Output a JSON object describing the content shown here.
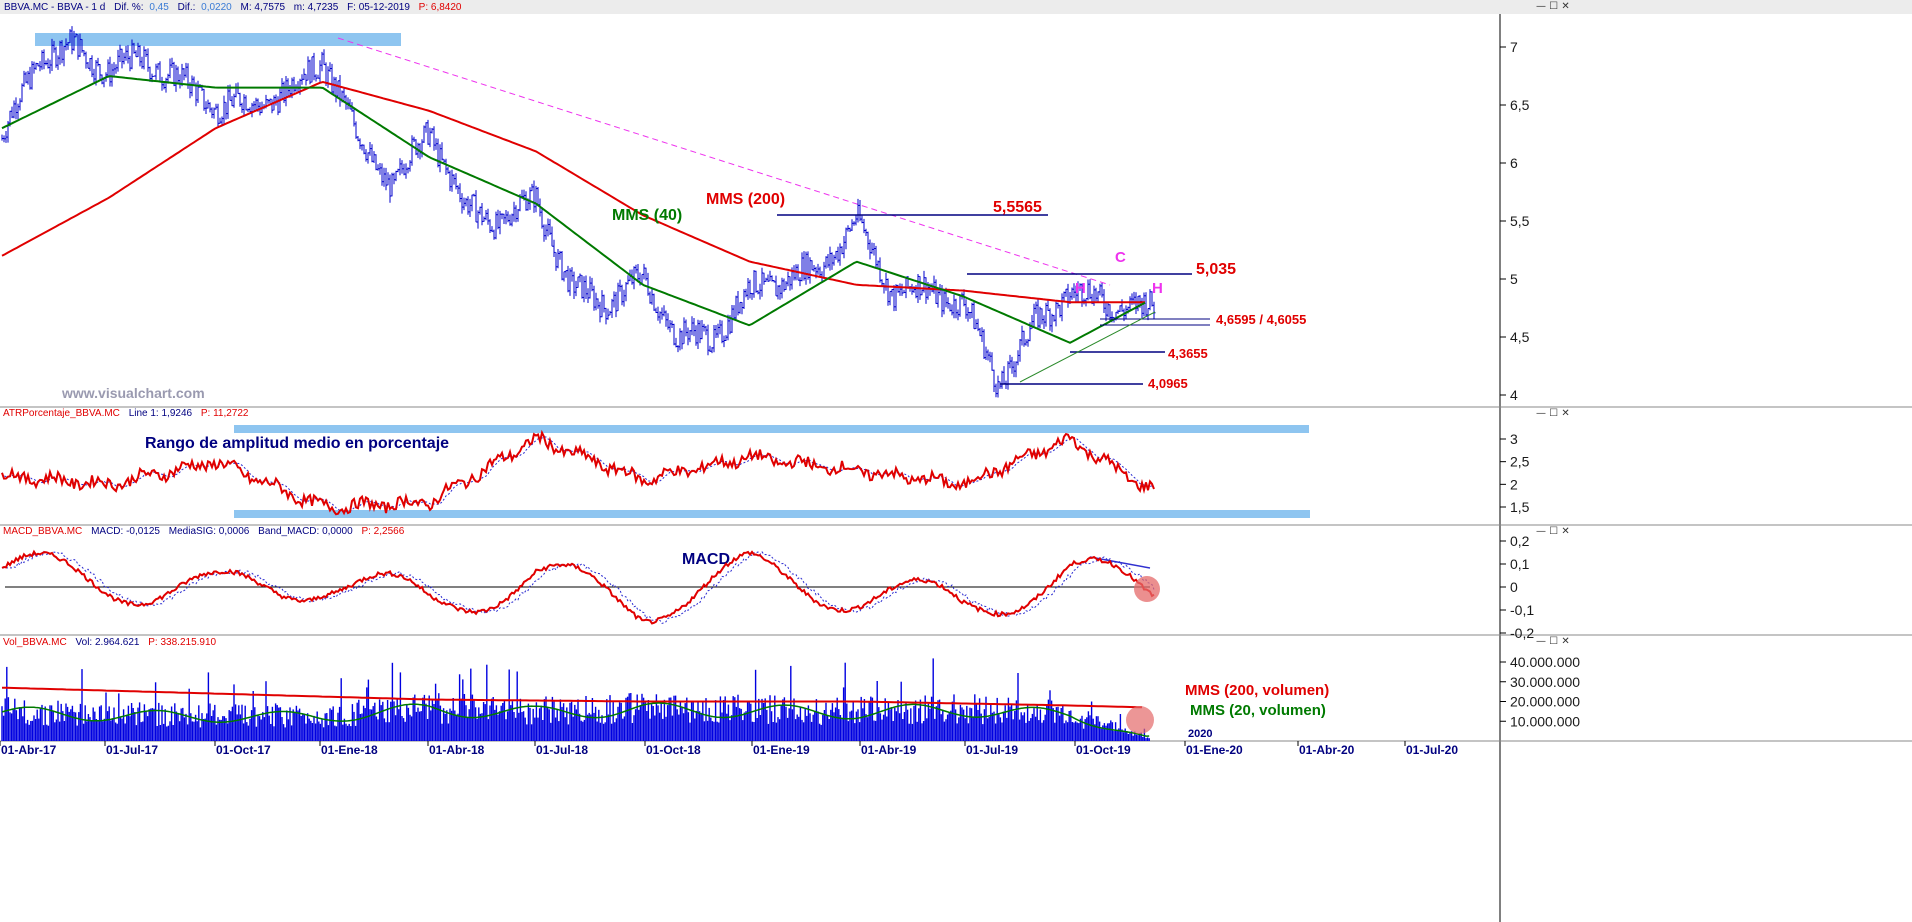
{
  "colors": {
    "price": "#0000cc",
    "mms200": "#e00000",
    "mms40": "#007a00",
    "band": "#8ec5f0",
    "trend": "#ee33ee",
    "annot_red": "#e00000",
    "annot_blue": "#000080",
    "annot_magenta": "#ee33ee",
    "macd_hist_dot": "#e46a6a"
  },
  "panels": {
    "price": {
      "header": {
        "symbol": "BBVA.MC - BBVA - 1 d",
        "dif_pct_label": "Dif. %:",
        "dif_pct": "0,45",
        "dif_label": "Dif.:",
        "dif": "0,0220",
        "max": "M: 4,7575",
        "min": "m: 4,7235",
        "date": "F: 05-12-2019",
        "prev": "P: 6,8420"
      },
      "yticks": [
        "7",
        "6,5",
        "6",
        "5,5",
        "5",
        "4,5",
        "4"
      ],
      "watermark": "www.visualchart.com",
      "labels": {
        "mms40": "MMS (40)",
        "mms200": "MMS (200)",
        "l5565": "5,5565",
        "l5035": "5,035",
        "l46595": "4,6595 / 4,6055",
        "l43655": "4,3655",
        "l40965": "4,0965",
        "h1": "H",
        "c": "C",
        "h2": "H"
      }
    },
    "atr": {
      "header": {
        "name": "ATRPorcentaje_BBVA.MC",
        "line1": "Line 1: 1,9246",
        "p": "P: 11,2722"
      },
      "title": "Rango de amplitud medio en porcentaje",
      "yticks": [
        "3",
        "2,5",
        "2",
        "1,5"
      ]
    },
    "macd": {
      "header": {
        "name": "MACD_BBVA.MC",
        "macd": "MACD: -0,0125",
        "sig": "MediaSIG: 0,0006",
        "band": "Band_MACD: 0,0000",
        "p": "P: 2,2566"
      },
      "title": "MACD",
      "yticks": [
        "0,2",
        "0,1",
        "0",
        "-0,1",
        "-0,2"
      ]
    },
    "volume": {
      "header": {
        "name": "Vol_BBVA.MC",
        "vol": "Vol: 2.964.621",
        "p": "P: 338.215.910"
      },
      "yticks": [
        "40.000.000",
        "30.000.000",
        "20.000.000",
        "10.000.000"
      ],
      "legend200": "MMS (200, volumen)",
      "legend20": "MMS (20, volumen)",
      "year_label": "2020"
    }
  },
  "xaxis": {
    "labels": [
      "01-Abr-17",
      "01-Jul-17",
      "01-Oct-17",
      "01-Ene-18",
      "01-Abr-18",
      "01-Jul-18",
      "01-Oct-18",
      "01-Ene-19",
      "01-Abr-19",
      "01-Jul-19",
      "01-Oct-19",
      "01-Ene-20",
      "01-Abr-20",
      "01-Jul-20"
    ]
  },
  "chart_data": [
    {
      "type": "line",
      "title": "",
      "series": [
        {
          "name": "BBVA.MC",
          "x": [
            "01-Abr-17",
            "01-May-17",
            "01-Jun-17",
            "01-Jul-17",
            "01-Ago-17",
            "01-Sep-17",
            "01-Oct-17",
            "01-Nov-17",
            "01-Dic-17",
            "01-Ene-18",
            "15-Ene-18",
            "01-Feb-18",
            "01-Mar-18",
            "01-Abr-18",
            "01-May-18",
            "01-Jun-18",
            "01-Jul-18",
            "01-Ago-18",
            "01-Sep-18",
            "01-Oct-18",
            "01-Nov-18",
            "01-Dic-18",
            "01-Ene-19",
            "01-Feb-19",
            "01-Mar-19",
            "01-Abr-19",
            "01-May-19",
            "01-Jun-19",
            "01-Jul-19",
            "01-Ago-19",
            "01-Sep-19",
            "01-Oct-19",
            "01-Nov-19",
            "05-Dic-19"
          ],
          "values": [
            6.2,
            6.9,
            7.0,
            6.8,
            6.9,
            6.7,
            6.5,
            6.5,
            6.6,
            6.9,
            6.6,
            6.2,
            5.8,
            6.3,
            5.6,
            5.5,
            5.7,
            4.9,
            4.8,
            5.0,
            4.5,
            4.5,
            4.9,
            5.0,
            5.1,
            5.5,
            4.9,
            4.9,
            4.8,
            4.1,
            4.6,
            4.9,
            4.8,
            4.74
          ]
        },
        {
          "name": "MMS (40)",
          "x": [
            "01-Abr-17",
            "01-Jul-17",
            "01-Oct-17",
            "01-Ene-18",
            "01-Abr-18",
            "01-Jul-18",
            "01-Oct-18",
            "01-Ene-19",
            "01-Abr-19",
            "01-Jul-19",
            "01-Oct-19",
            "05-Dic-19"
          ],
          "values": [
            6.3,
            6.75,
            6.65,
            6.65,
            6.05,
            5.65,
            4.95,
            4.6,
            5.15,
            4.85,
            4.45,
            4.8
          ]
        },
        {
          "name": "MMS (200)",
          "x": [
            "01-Abr-17",
            "01-Jul-17",
            "01-Oct-17",
            "01-Ene-18",
            "01-Abr-18",
            "01-Jul-18",
            "01-Oct-18",
            "01-Ene-19",
            "01-Abr-19",
            "01-Jul-19",
            "01-Oct-19",
            "05-Dic-19"
          ],
          "values": [
            5.2,
            5.7,
            6.3,
            6.7,
            6.45,
            6.1,
            5.55,
            5.15,
            4.95,
            4.9,
            4.8,
            4.8
          ]
        }
      ],
      "levels": [
        5.5565,
        5.035,
        4.6595,
        4.6055,
        4.3655,
        4.0965
      ],
      "ylim": [
        3.95,
        7.3
      ]
    },
    {
      "type": "line",
      "title": "Rango de amplitud medio en porcentaje",
      "series": [
        {
          "name": "ATRPorcentaje_BBVA.MC",
          "x": [
            "01-Abr-17",
            "01-Jul-17",
            "01-Oct-17",
            "01-Ene-18",
            "01-Abr-18",
            "01-Jul-18",
            "01-Oct-18",
            "01-Ene-19",
            "01-Abr-19",
            "01-Jul-19",
            "01-Oct-19",
            "05-Dic-19"
          ],
          "values": [
            2.2,
            2.0,
            2.5,
            1.5,
            1.6,
            3.0,
            2.1,
            2.6,
            2.3,
            2.0,
            3.0,
            1.92
          ]
        }
      ],
      "ylim": [
        1.2,
        3.4
      ]
    },
    {
      "type": "line",
      "title": "MACD",
      "series": [
        {
          "name": "MACD_BBVA.MC",
          "x": [
            "01-Abr-17",
            "01-Jul-17",
            "01-Oct-17",
            "01-Ene-18",
            "01-Abr-18",
            "01-Jul-18",
            "01-Oct-18",
            "01-Ene-19",
            "01-Abr-19",
            "01-Jul-19",
            "01-Oct-19",
            "05-Dic-19"
          ],
          "values": [
            0.15,
            0.05,
            -0.05,
            0.08,
            -0.14,
            0.08,
            -0.15,
            0.12,
            -0.05,
            -0.16,
            0.1,
            -0.0125
          ]
        }
      ],
      "ylim": [
        -0.2,
        0.2
      ]
    },
    {
      "type": "bar",
      "title": "",
      "series": [
        {
          "name": "Vol_BBVA.MC",
          "x": [
            "01-Abr-17",
            "01-Jul-17",
            "01-Oct-17",
            "01-Ene-18",
            "01-Abr-18",
            "01-Jul-18",
            "01-Oct-18",
            "01-Ene-19",
            "01-Abr-19",
            "01-Jul-19",
            "01-Oct-19",
            "05-Dic-19"
          ],
          "values": [
            20000000,
            18000000,
            17000000,
            17000000,
            22000000,
            20000000,
            22000000,
            21000000,
            20000000,
            22000000,
            18000000,
            2964621
          ]
        },
        {
          "name": "MMS (200, volumen)",
          "x": [
            "01-Abr-17",
            "01-Oct-17",
            "01-Abr-18",
            "01-Oct-18",
            "01-Abr-19",
            "01-Oct-19",
            "05-Dic-19"
          ],
          "values": [
            27000000,
            24000000,
            21000000,
            20000000,
            20000000,
            18000000,
            17000000
          ]
        }
      ],
      "ylim": [
        0,
        48000000
      ]
    }
  ]
}
